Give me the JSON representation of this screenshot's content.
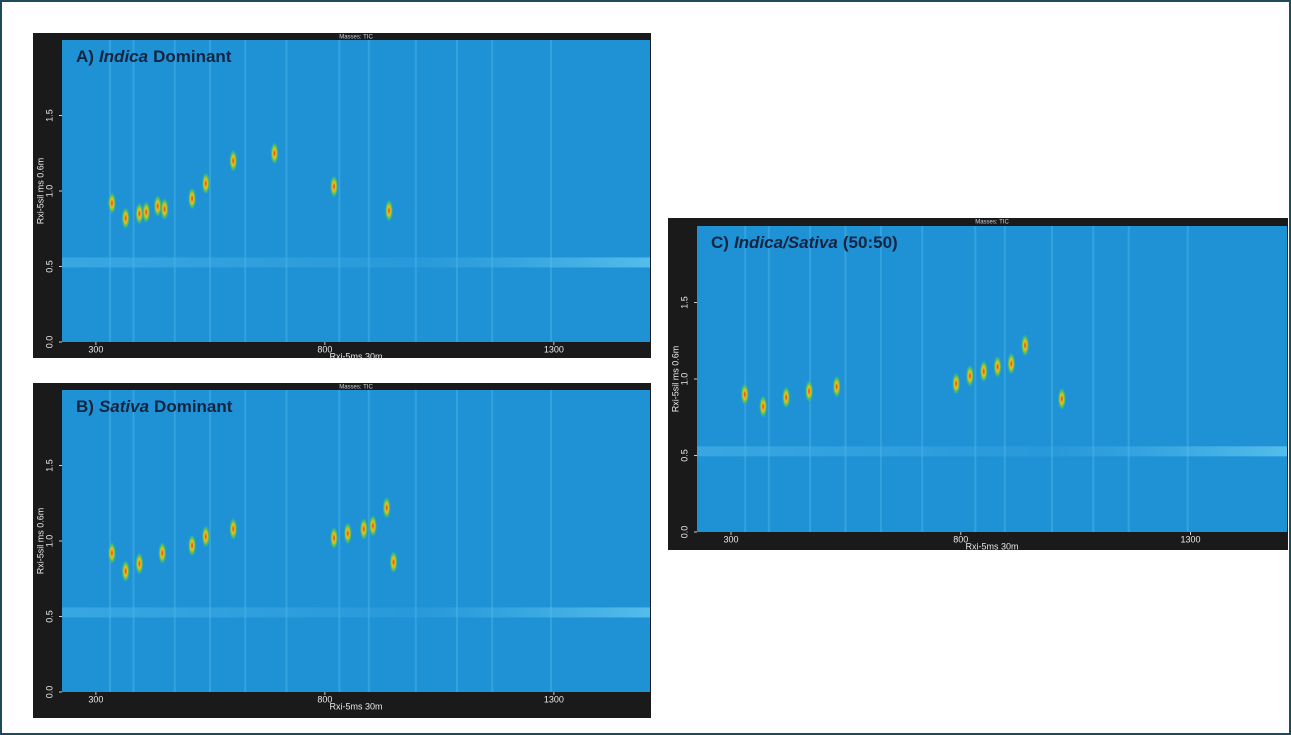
{
  "chart_data": [
    {
      "type": "contour",
      "header": "Masses: TIC",
      "title": {
        "prefix": "A)",
        "emphasis": "Indica",
        "suffix": "Dominant"
      },
      "xlabel": "Rxi-5ms 30m",
      "ylabel": "Rxi-5sil ms 0.6m",
      "xlim": [
        226,
        1510
      ],
      "xticks": [
        300,
        800,
        1300
      ],
      "ylim": [
        0,
        2.0
      ],
      "yticks": [
        {
          "value": 0,
          "label": "0.0"
        },
        0.5,
        {
          "value": 1,
          "label": "1.0"
        },
        1.5
      ],
      "peaks": {
        "x": [
          335,
          365,
          395,
          410,
          435,
          450,
          510,
          540,
          600,
          690,
          820,
          940
        ],
        "y": [
          0.92,
          0.82,
          0.85,
          0.86,
          0.9,
          0.88,
          0.95,
          1.05,
          1.2,
          1.25,
          1.03,
          0.87
        ]
      }
    },
    {
      "type": "contour",
      "header": "Masses: TIC",
      "title": {
        "prefix": "B)",
        "emphasis": "Sativa",
        "suffix": "Dominant"
      },
      "xlabel": "Rxi-5ms 30m",
      "ylabel": "Rxi-5sil ms 0.6m",
      "xlim": [
        226,
        1510
      ],
      "xticks": [
        300,
        800,
        1300
      ],
      "ylim": [
        0,
        2.0
      ],
      "yticks": [
        {
          "value": 0,
          "label": "0.0"
        },
        0.5,
        {
          "value": 1,
          "label": "1.0"
        },
        1.5
      ],
      "peaks": {
        "x": [
          335,
          365,
          395,
          445,
          510,
          540,
          600,
          820,
          850,
          885,
          905,
          935,
          950
        ],
        "y": [
          0.92,
          0.8,
          0.85,
          0.92,
          0.97,
          1.03,
          1.08,
          1.02,
          1.05,
          1.08,
          1.1,
          1.22,
          0.86
        ]
      }
    },
    {
      "type": "contour",
      "header": "Masses: TIC",
      "title": {
        "prefix": "C)",
        "emphasis": "Indica/Sativa",
        "suffix": "(50:50)"
      },
      "xlabel": "Rxi-5ms 30m",
      "ylabel": "Rxi-5sil ms 0.6m",
      "xlim": [
        226,
        1510
      ],
      "xticks": [
        300,
        800,
        1300
      ],
      "ylim": [
        0,
        2.0
      ],
      "yticks": [
        {
          "value": 0,
          "label": "0.0"
        },
        0.5,
        {
          "value": 1,
          "label": "1.0"
        },
        1.5
      ],
      "peaks": {
        "x": [
          330,
          370,
          420,
          470,
          530,
          790,
          820,
          850,
          880,
          910,
          940,
          1020
        ],
        "y": [
          0.9,
          0.82,
          0.88,
          0.92,
          0.95,
          0.97,
          1.02,
          1.05,
          1.08,
          1.1,
          1.22,
          0.87
        ]
      }
    }
  ]
}
